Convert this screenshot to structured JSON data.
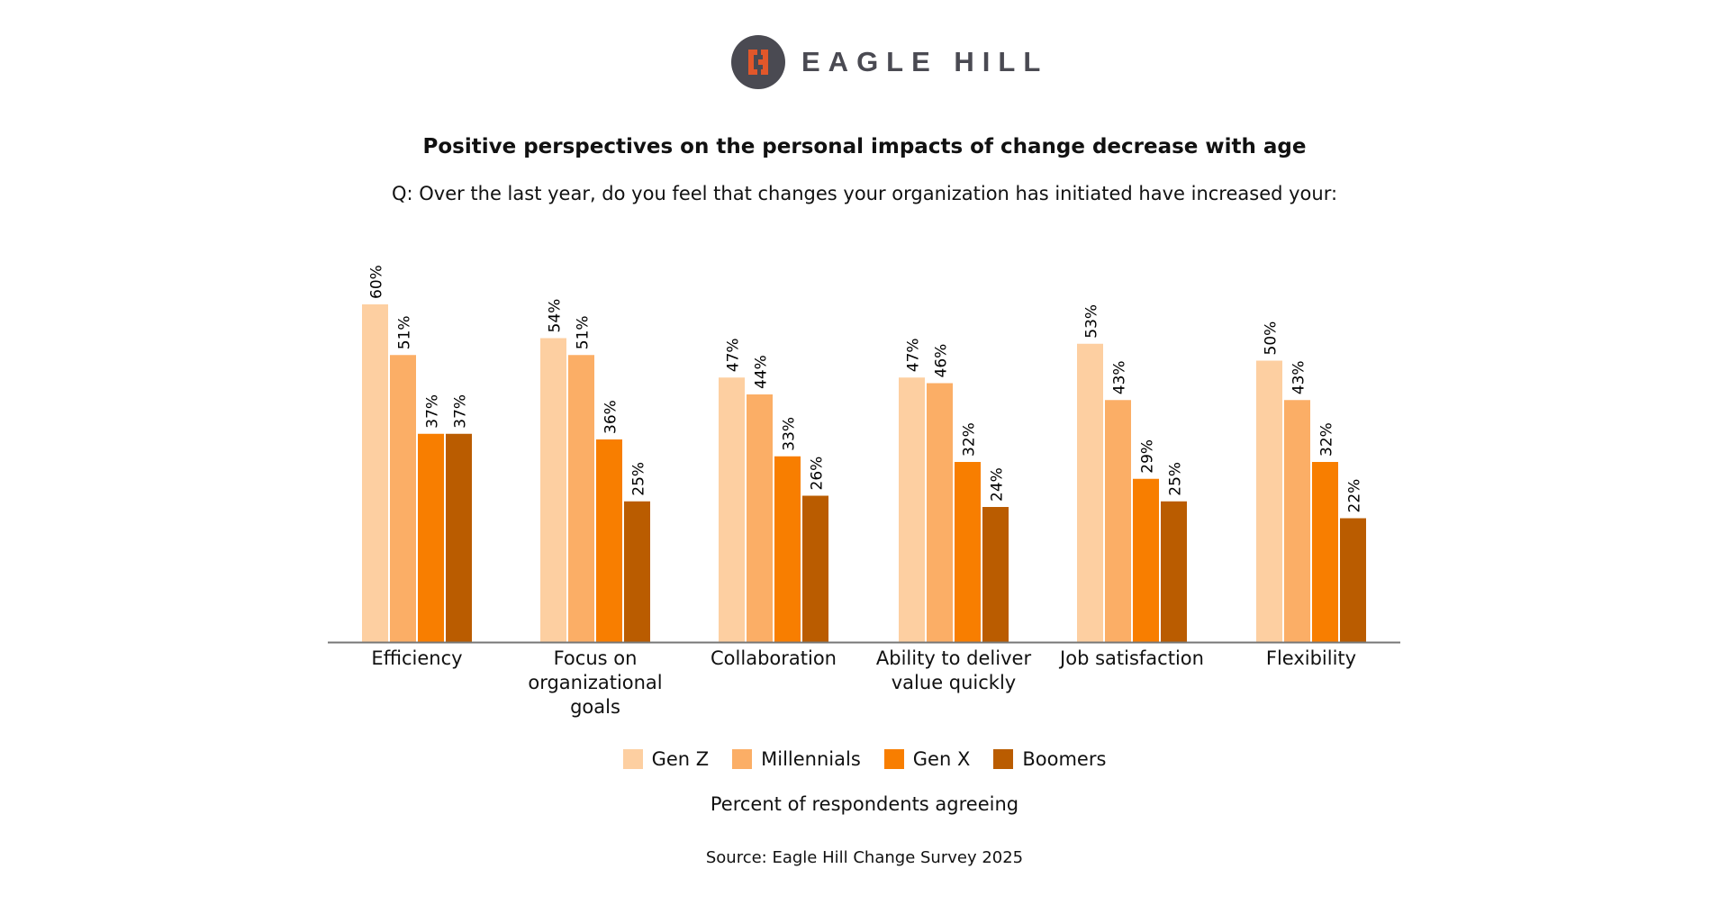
{
  "logo": {
    "text": "EAGLE HILL",
    "icon": "eagle-hill-logo-icon",
    "colors": {
      "circle": "#4a4a52",
      "mark": "#e2572a"
    }
  },
  "chart_data": {
    "type": "bar",
    "title": "Positive perspectives on the personal impacts of change decrease with age",
    "subtitle": "Q: Over the last year, do you feel that changes your organization has initiated have increased your:",
    "categories": [
      "Efficiency",
      "Focus on organizational goals",
      "Collaboration",
      "Ability to deliver value quickly",
      "Job satisfaction",
      "Flexibility"
    ],
    "category_lines": [
      [
        "Efficiency"
      ],
      [
        "Focus on",
        "organizational",
        "goals"
      ],
      [
        "Collaboration"
      ],
      [
        "Ability to deliver",
        "value quickly"
      ],
      [
        "Job satisfaction"
      ],
      [
        "Flexibility"
      ]
    ],
    "series": [
      {
        "name": "Gen Z",
        "color": "#FDCFA1",
        "values": [
          60,
          54,
          47,
          47,
          53,
          50
        ]
      },
      {
        "name": "Millennials",
        "color": "#FBAE66",
        "values": [
          51,
          51,
          44,
          46,
          43,
          43
        ]
      },
      {
        "name": "Gen X",
        "color": "#F87E00",
        "values": [
          37,
          36,
          33,
          32,
          29,
          32
        ]
      },
      {
        "name": "Boomers",
        "color": "#BA5C00",
        "values": [
          37,
          25,
          26,
          24,
          25,
          22
        ]
      }
    ],
    "value_suffix": "%",
    "ylim": [
      0,
      60
    ],
    "grid": false,
    "legend": "bottom",
    "xlabel": "Percent of respondents agreeing"
  },
  "source": "Source: Eagle Hill Change Survey 2025"
}
